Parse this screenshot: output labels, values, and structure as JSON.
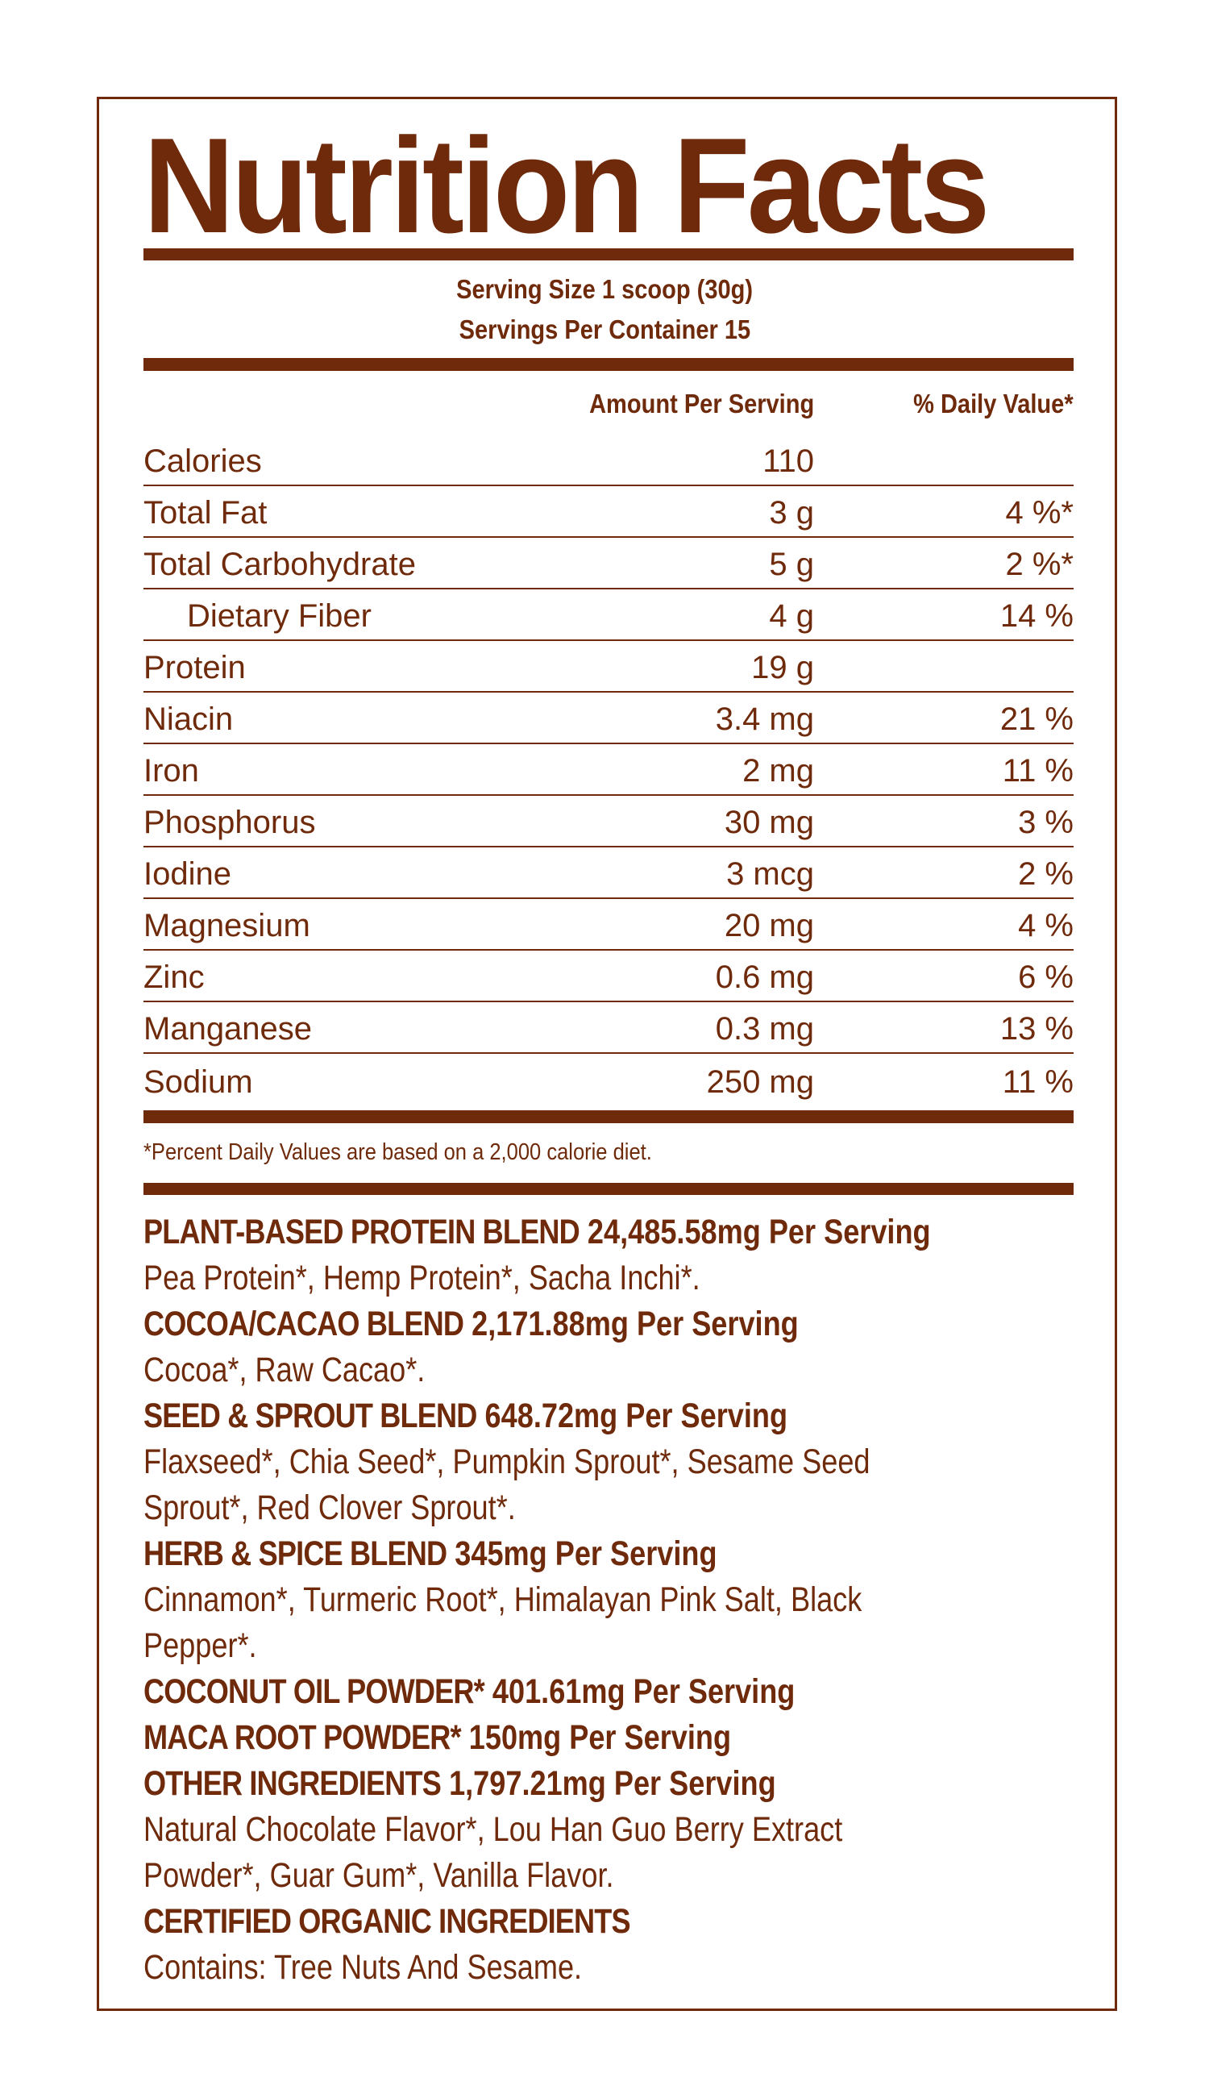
{
  "title": "Nutrition Facts",
  "serving_size": "Serving Size 1 scoop (30g)",
  "servings_per_container": "Servings Per Container 15",
  "headers": {
    "amount": "Amount Per Serving",
    "daily_value": "% Daily Value*"
  },
  "rows": [
    {
      "name": "Calories",
      "amount": "110",
      "dv": ""
    },
    {
      "name": "Total Fat",
      "amount": "3 g",
      "dv": "4 %*"
    },
    {
      "name": "Total Carbohydrate",
      "amount": "5 g",
      "dv": "2 %*"
    },
    {
      "name": "Dietary Fiber",
      "amount": "4 g",
      "dv": "14 %"
    },
    {
      "name": "Protein",
      "amount": "19 g",
      "dv": ""
    },
    {
      "name": "Niacin",
      "amount": "3.4 mg",
      "dv": "21 %"
    },
    {
      "name": "Iron",
      "amount": "2 mg",
      "dv": "11 %"
    },
    {
      "name": "Phosphorus",
      "amount": "30 mg",
      "dv": "3 %"
    },
    {
      "name": "Iodine",
      "amount": "3 mcg",
      "dv": "2 %"
    },
    {
      "name": "Magnesium",
      "amount": "20 mg",
      "dv": "4 %"
    },
    {
      "name": "Zinc",
      "amount": "0.6 mg",
      "dv": "6 %"
    },
    {
      "name": "Manganese",
      "amount": "0.3 mg",
      "dv": "13 %"
    },
    {
      "name": "Sodium",
      "amount": "250 mg",
      "dv": "11 %"
    }
  ],
  "footnote": "*Percent Daily Values are based on a 2,000 calorie diet.",
  "ingredients": [
    {
      "type": "heading",
      "name": "PLANT-BASED PROTEIN BLEND",
      "qty": "24,485.58mg Per Serving"
    },
    {
      "type": "text",
      "text": "Pea Protein*, Hemp Protein*, Sacha Inchi*."
    },
    {
      "type": "heading",
      "name": "COCOA/CACAO BLEND",
      "qty": "2,171.88mg Per Serving"
    },
    {
      "type": "text",
      "text": "Cocoa*, Raw Cacao*."
    },
    {
      "type": "heading",
      "name": "SEED & SPROUT BLEND",
      "qty": "648.72mg Per Serving"
    },
    {
      "type": "text",
      "text": "Flaxseed*, Chia Seed*, Pumpkin Sprout*, Sesame Seed"
    },
    {
      "type": "text",
      "text": "Sprout*, Red Clover Sprout*."
    },
    {
      "type": "heading",
      "name": "HERB & SPICE BLEND",
      "qty": "345mg Per Serving"
    },
    {
      "type": "text",
      "text": "Cinnamon*, Turmeric Root*, Himalayan Pink Salt, Black"
    },
    {
      "type": "text",
      "text": "Pepper*."
    },
    {
      "type": "heading",
      "name": "COCONUT OIL POWDER*",
      "qty": "401.61mg Per Serving"
    },
    {
      "type": "heading",
      "name": "MACA ROOT POWDER*",
      "qty": "150mg Per Serving"
    },
    {
      "type": "heading",
      "name": "OTHER INGREDIENTS",
      "qty": "1,797.21mg Per Serving"
    },
    {
      "type": "text",
      "text": "Natural Chocolate Flavor*, Lou Han Guo Berry Extract"
    },
    {
      "type": "text",
      "text": "Powder*, Guar Gum*, Vanilla Flavor."
    },
    {
      "type": "heading",
      "name": "CERTIFIED ORGANIC INGREDIENTS",
      "qty": ""
    },
    {
      "type": "text",
      "text": "Contains: Tree Nuts And Sesame."
    }
  ],
  "colors": {
    "ink": "#6e2a0a",
    "background": "#ffffff"
  }
}
